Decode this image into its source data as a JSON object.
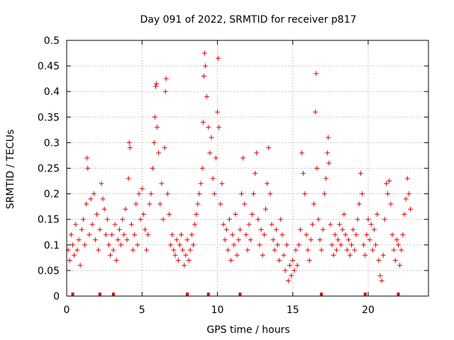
{
  "chart_data": {
    "type": "scatter",
    "title": "Day 091 of 2022, SRMTID for receiver p817",
    "xlabel": "GPS time / hours",
    "ylabel": "SRMTID / TECUs",
    "xlim": [
      0,
      24
    ],
    "ylim": [
      0,
      0.5
    ],
    "x_ticks": [
      0,
      5,
      10,
      15,
      20
    ],
    "x_tick_labels": [
      "0",
      "5",
      "10",
      "15",
      "20"
    ],
    "y_ticks": [
      0,
      0.05,
      0.1,
      0.15,
      0.2,
      0.25,
      0.3,
      0.35,
      0.4,
      0.45,
      0.5
    ],
    "y_tick_labels": [
      "0",
      "0.05",
      "0.1",
      "0.15",
      "0.2",
      "0.25",
      "0.3",
      "0.35",
      "0.4",
      "0.45",
      "0.5"
    ],
    "grid": true,
    "marker": "+",
    "color": "#dd0000",
    "series": [
      {
        "name": "SRMTID",
        "points": [
          [
            0.1,
            0.09
          ],
          [
            0.2,
            0.07
          ],
          [
            0.3,
            0.12
          ],
          [
            0.4,
            0.1
          ],
          [
            0.5,
            0.08
          ],
          [
            0.6,
            0.14
          ],
          [
            0.7,
            0.09
          ],
          [
            0.8,
            0.11
          ],
          [
            0.9,
            0.06
          ],
          [
            1.0,
            0.13
          ],
          [
            1.1,
            0.15
          ],
          [
            1.2,
            0.1
          ],
          [
            1.3,
            0.18
          ],
          [
            1.35,
            0.27
          ],
          [
            1.4,
            0.25
          ],
          [
            1.5,
            0.12
          ],
          [
            1.6,
            0.19
          ],
          [
            1.7,
            0.14
          ],
          [
            1.8,
            0.2
          ],
          [
            1.9,
            0.11
          ],
          [
            2.0,
            0.16
          ],
          [
            2.1,
            0.09
          ],
          [
            2.2,
            0.13
          ],
          [
            2.3,
            0.22
          ],
          [
            2.4,
            0.19
          ],
          [
            2.5,
            0.17
          ],
          [
            2.6,
            0.12
          ],
          [
            2.7,
            0.15
          ],
          [
            2.8,
            0.1
          ],
          [
            2.9,
            0.08
          ],
          [
            3.0,
            0.12
          ],
          [
            3.1,
            0.09
          ],
          [
            3.2,
            0.14
          ],
          [
            3.3,
            0.07
          ],
          [
            3.4,
            0.11
          ],
          [
            3.5,
            0.13
          ],
          [
            3.6,
            0.1
          ],
          [
            3.7,
            0.15
          ],
          [
            3.8,
            0.12
          ],
          [
            3.9,
            0.17
          ],
          [
            4.0,
            0.11
          ],
          [
            4.1,
            0.23
          ],
          [
            4.15,
            0.3
          ],
          [
            4.2,
            0.29
          ],
          [
            4.3,
            0.14
          ],
          [
            4.4,
            0.09
          ],
          [
            4.5,
            0.12
          ],
          [
            4.6,
            0.18
          ],
          [
            4.7,
            0.1
          ],
          [
            4.8,
            0.2
          ],
          [
            4.9,
            0.15
          ],
          [
            5.0,
            0.21
          ],
          [
            5.1,
            0.16
          ],
          [
            5.2,
            0.13
          ],
          [
            5.3,
            0.09
          ],
          [
            5.4,
            0.12
          ],
          [
            5.5,
            0.18
          ],
          [
            5.6,
            0.2
          ],
          [
            5.7,
            0.25
          ],
          [
            5.8,
            0.3
          ],
          [
            5.85,
            0.35
          ],
          [
            5.9,
            0.41
          ],
          [
            5.95,
            0.415
          ],
          [
            6.0,
            0.33
          ],
          [
            6.1,
            0.28
          ],
          [
            6.2,
            0.18
          ],
          [
            6.3,
            0.22
          ],
          [
            6.4,
            0.15
          ],
          [
            6.5,
            0.29
          ],
          [
            6.55,
            0.4
          ],
          [
            6.6,
            0.425
          ],
          [
            6.7,
            0.2
          ],
          [
            6.8,
            0.16
          ],
          [
            6.9,
            0.1
          ],
          [
            7.0,
            0.12
          ],
          [
            7.1,
            0.09
          ],
          [
            7.2,
            0.08
          ],
          [
            7.3,
            0.11
          ],
          [
            7.4,
            0.07
          ],
          [
            7.5,
            0.1
          ],
          [
            7.6,
            0.12
          ],
          [
            7.7,
            0.09
          ],
          [
            7.8,
            0.06
          ],
          [
            7.9,
            0.08
          ],
          [
            8.0,
            0.11
          ],
          [
            8.1,
            0.07
          ],
          [
            8.2,
            0.09
          ],
          [
            8.3,
            0.12
          ],
          [
            8.4,
            0.1
          ],
          [
            8.5,
            0.14
          ],
          [
            8.6,
            0.16
          ],
          [
            8.7,
            0.18
          ],
          [
            8.8,
            0.2
          ],
          [
            8.9,
            0.22
          ],
          [
            9.0,
            0.25
          ],
          [
            9.05,
            0.34
          ],
          [
            9.1,
            0.43
          ],
          [
            9.15,
            0.475
          ],
          [
            9.2,
            0.45
          ],
          [
            9.3,
            0.39
          ],
          [
            9.4,
            0.33
          ],
          [
            9.5,
            0.28
          ],
          [
            9.6,
            0.31
          ],
          [
            9.7,
            0.23
          ],
          [
            9.8,
            0.2
          ],
          [
            9.9,
            0.27
          ],
          [
            10.0,
            0.36
          ],
          [
            10.05,
            0.465
          ],
          [
            10.1,
            0.33
          ],
          [
            10.2,
            0.18
          ],
          [
            10.3,
            0.22
          ],
          [
            10.4,
            0.14
          ],
          [
            10.5,
            0.11
          ],
          [
            10.6,
            0.13
          ],
          [
            10.7,
            0.09
          ],
          [
            10.8,
            0.15
          ],
          [
            10.9,
            0.07
          ],
          [
            11.0,
            0.12
          ],
          [
            11.1,
            0.1
          ],
          [
            11.2,
            0.16
          ],
          [
            11.3,
            0.08
          ],
          [
            11.4,
            0.11
          ],
          [
            11.5,
            0.13
          ],
          [
            11.6,
            0.2
          ],
          [
            11.7,
            0.27
          ],
          [
            11.8,
            0.18
          ],
          [
            11.9,
            0.12
          ],
          [
            12.0,
            0.09
          ],
          [
            12.1,
            0.14
          ],
          [
            12.2,
            0.11
          ],
          [
            12.3,
            0.16
          ],
          [
            12.4,
            0.2
          ],
          [
            12.5,
            0.24
          ],
          [
            12.6,
            0.28
          ],
          [
            12.7,
            0.15
          ],
          [
            12.8,
            0.1
          ],
          [
            12.9,
            0.13
          ],
          [
            13.0,
            0.08
          ],
          [
            13.1,
            0.12
          ],
          [
            13.2,
            0.17
          ],
          [
            13.3,
            0.22
          ],
          [
            13.4,
            0.29
          ],
          [
            13.5,
            0.2
          ],
          [
            13.6,
            0.14
          ],
          [
            13.7,
            0.11
          ],
          [
            13.8,
            0.09
          ],
          [
            13.9,
            0.13
          ],
          [
            14.0,
            0.1
          ],
          [
            14.1,
            0.07
          ],
          [
            14.2,
            0.15
          ],
          [
            14.3,
            0.12
          ],
          [
            14.4,
            0.08
          ],
          [
            14.5,
            0.05
          ],
          [
            14.6,
            0.1
          ],
          [
            14.7,
            0.03
          ],
          [
            14.8,
            0.06
          ],
          [
            14.9,
            0.04
          ],
          [
            15.0,
            0.07
          ],
          [
            15.1,
            0.05
          ],
          [
            15.2,
            0.09
          ],
          [
            15.3,
            0.06
          ],
          [
            15.4,
            0.1
          ],
          [
            15.5,
            0.13
          ],
          [
            15.6,
            0.28
          ],
          [
            15.7,
            0.24
          ],
          [
            15.8,
            0.2
          ],
          [
            15.9,
            0.12
          ],
          [
            16.0,
            0.09
          ],
          [
            16.1,
            0.07
          ],
          [
            16.2,
            0.11
          ],
          [
            16.3,
            0.14
          ],
          [
            16.4,
            0.18
          ],
          [
            16.5,
            0.36
          ],
          [
            16.55,
            0.435
          ],
          [
            16.6,
            0.25
          ],
          [
            16.7,
            0.15
          ],
          [
            16.8,
            0.11
          ],
          [
            16.9,
            0.09
          ],
          [
            17.0,
            0.13
          ],
          [
            17.1,
            0.2
          ],
          [
            17.2,
            0.23
          ],
          [
            17.3,
            0.28
          ],
          [
            17.35,
            0.31
          ],
          [
            17.4,
            0.26
          ],
          [
            17.5,
            0.14
          ],
          [
            17.6,
            0.1
          ],
          [
            17.7,
            0.08
          ],
          [
            17.8,
            0.12
          ],
          [
            17.9,
            0.09
          ],
          [
            18.0,
            0.11
          ],
          [
            18.1,
            0.14
          ],
          [
            18.2,
            0.1
          ],
          [
            18.3,
            0.13
          ],
          [
            18.4,
            0.16
          ],
          [
            18.5,
            0.12
          ],
          [
            18.6,
            0.09
          ],
          [
            18.7,
            0.11
          ],
          [
            18.8,
            0.08
          ],
          [
            18.9,
            0.1
          ],
          [
            19.0,
            0.13
          ],
          [
            19.1,
            0.09
          ],
          [
            19.2,
            0.12
          ],
          [
            19.3,
            0.15
          ],
          [
            19.4,
            0.18
          ],
          [
            19.5,
            0.24
          ],
          [
            19.6,
            0.2
          ],
          [
            19.7,
            0.1
          ],
          [
            19.8,
            0.08
          ],
          [
            19.9,
            0.12
          ],
          [
            20.0,
            0.15
          ],
          [
            20.1,
            0.11
          ],
          [
            20.2,
            0.14
          ],
          [
            20.3,
            0.09
          ],
          [
            20.4,
            0.13
          ],
          [
            20.5,
            0.1
          ],
          [
            20.6,
            0.16
          ],
          [
            20.7,
            0.07
          ],
          [
            20.8,
            0.04
          ],
          [
            20.9,
            0.03
          ],
          [
            21.0,
            0.08
          ],
          [
            21.1,
            0.15
          ],
          [
            21.2,
            0.22
          ],
          [
            21.3,
            0.2
          ],
          [
            21.4,
            0.225
          ],
          [
            21.5,
            0.18
          ],
          [
            21.6,
            0.12
          ],
          [
            21.7,
            0.09
          ],
          [
            21.8,
            0.07
          ],
          [
            21.9,
            0.11
          ],
          [
            22.0,
            0.1
          ],
          [
            22.1,
            0.06
          ],
          [
            22.2,
            0.09
          ],
          [
            22.3,
            0.12
          ],
          [
            22.4,
            0.16
          ],
          [
            22.5,
            0.19
          ],
          [
            22.6,
            0.23
          ],
          [
            22.7,
            0.2
          ],
          [
            22.8,
            0.17
          ]
        ]
      }
    ],
    "gap_markers_x": [
      0.4,
      2.2,
      3.1,
      8.0,
      9.4,
      11.5,
      16.9,
      19.8,
      22.0
    ]
  }
}
